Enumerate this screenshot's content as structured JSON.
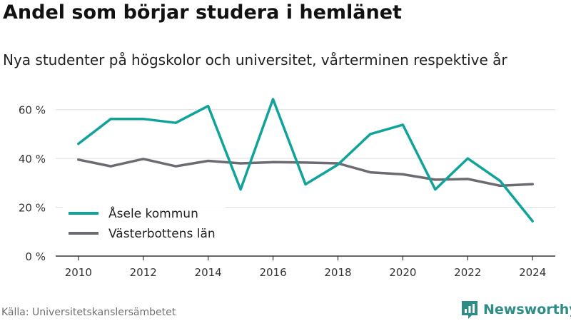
{
  "header": {
    "title": "Andel som börjar studera i hemlänet",
    "subtitle": "Nya studenter på högskolor och universitet, vårterminen respektive år"
  },
  "footer": {
    "source": "Källa: Universitetskanslersämbetet",
    "brand": "Newsworthy",
    "brand_icon": "newsworthy-logo-icon"
  },
  "colors": {
    "asele": "#10a39a",
    "vasterbotten": "#6d6a71",
    "grid": "#dddddd",
    "axis": "#333333",
    "brand": "#2e8c86"
  },
  "chart_data": {
    "type": "line",
    "title": "Andel som börjar studera i hemlänet",
    "subtitle": "Nya studenter på högskolor och universitet, vårterminen respektive år",
    "x": [
      2010,
      2011,
      2012,
      2013,
      2014,
      2015,
      2016,
      2017,
      2018,
      2019,
      2020,
      2021,
      2022,
      2023,
      2024
    ],
    "xticks": [
      2010,
      2012,
      2014,
      2016,
      2018,
      2020,
      2022,
      2024
    ],
    "xtick_labels": [
      "2010",
      "2012",
      "2014",
      "2016",
      "2018",
      "2020",
      "2022",
      "2024"
    ],
    "yticks": [
      0,
      20,
      40,
      60
    ],
    "ytick_labels": [
      "0 %",
      "20 %",
      "40 %",
      "60 %"
    ],
    "xlim": [
      2009.3,
      2024.7
    ],
    "ylim": [
      0,
      64
    ],
    "grid": "horizontal",
    "legend_position": "bottom-left",
    "series": [
      {
        "name": "Åsele kommun",
        "color": "#10a39a",
        "values": [
          46,
          56.2,
          56.2,
          54.6,
          61.5,
          27.3,
          64.3,
          29.4,
          37.5,
          50,
          53.8,
          27.3,
          40,
          30.8,
          14.3
        ]
      },
      {
        "name": "Västerbottens län",
        "color": "#6d6a71",
        "values": [
          39.5,
          36.8,
          39.8,
          36.8,
          39,
          38,
          38.5,
          38.3,
          38,
          34.3,
          33.5,
          31.3,
          31.6,
          28.8,
          29.5
        ]
      }
    ]
  }
}
